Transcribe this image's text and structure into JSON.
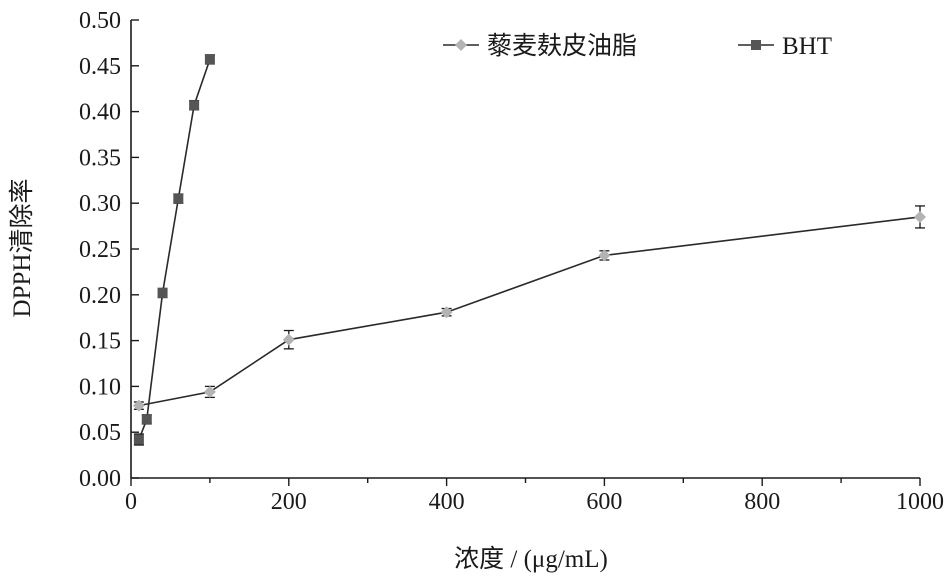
{
  "chart_data": {
    "type": "line",
    "xlabel": "浓度 / (μg/mL)",
    "ylabel": "DPPH清除率",
    "xlim": [
      0,
      1000
    ],
    "ylim": [
      0,
      0.5
    ],
    "xticks": [
      "0",
      "200",
      "400",
      "600",
      "800",
      "1000"
    ],
    "yticks": [
      "0.00",
      "0.05",
      "0.10",
      "0.15",
      "0.20",
      "0.25",
      "0.30",
      "0.35",
      "0.40",
      "0.45",
      "0.50"
    ],
    "grid": false,
    "legend_position": "top-right",
    "series": [
      {
        "name": "藜麦麸皮油脂",
        "color": "#b3b3b3",
        "marker": "diamond",
        "x": [
          10,
          100,
          200,
          400,
          600,
          1000
        ],
        "y": [
          0.079,
          0.094,
          0.151,
          0.181,
          0.243,
          0.285
        ],
        "err": [
          0.004,
          0.006,
          0.01,
          0.004,
          0.005,
          0.012
        ]
      },
      {
        "name": "BHT",
        "color": "#555555",
        "marker": "square",
        "x": [
          10,
          20,
          40,
          60,
          80,
          100
        ],
        "y": [
          0.042,
          0.064,
          0.202,
          0.305,
          0.407,
          0.457
        ],
        "err": [
          0.006,
          0.005,
          0.005,
          0.005,
          0.005,
          0.005
        ]
      }
    ]
  }
}
